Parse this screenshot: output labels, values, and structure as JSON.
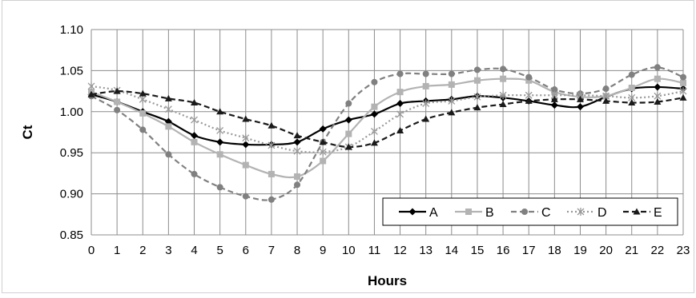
{
  "chart_data": {
    "type": "line",
    "title": "",
    "xlabel": "Hours",
    "ylabel": "Ct",
    "x": [
      0,
      1,
      2,
      3,
      4,
      5,
      6,
      7,
      8,
      9,
      10,
      11,
      12,
      13,
      14,
      15,
      16,
      17,
      18,
      19,
      20,
      21,
      22,
      23
    ],
    "ylim": [
      0.85,
      1.1
    ],
    "yticks": [
      "0.85",
      "0.90",
      "0.95",
      "1.00",
      "1.05",
      "1.10"
    ],
    "xticks": [
      "0",
      "1",
      "2",
      "3",
      "4",
      "5",
      "6",
      "7",
      "8",
      "9",
      "10",
      "11",
      "12",
      "13",
      "14",
      "15",
      "16",
      "17",
      "18",
      "19",
      "20",
      "21",
      "22",
      "23"
    ],
    "grid": "vertical and horizontal",
    "legend": "bottom-right",
    "series": [
      {
        "name": "A",
        "color": "#000000",
        "dash": "solid",
        "marker": "diamond",
        "values": [
          1.021,
          1.012,
          1.0,
          0.988,
          0.971,
          0.963,
          0.96,
          0.96,
          0.963,
          0.979,
          0.99,
          0.997,
          1.01,
          1.013,
          1.015,
          1.019,
          1.017,
          1.013,
          1.008,
          1.006,
          1.018,
          1.028,
          1.03,
          1.028
        ]
      },
      {
        "name": "B",
        "color": "#b3b3b3",
        "dash": "solid",
        "marker": "square",
        "values": [
          1.024,
          1.012,
          0.998,
          0.982,
          0.963,
          0.948,
          0.935,
          0.924,
          0.921,
          0.94,
          0.973,
          1.006,
          1.024,
          1.031,
          1.033,
          1.038,
          1.04,
          1.038,
          1.024,
          1.018,
          1.019,
          1.029,
          1.04,
          1.035
        ]
      },
      {
        "name": "C",
        "color": "#808080",
        "dash": "dashed",
        "marker": "circle",
        "values": [
          1.019,
          1.002,
          0.978,
          0.948,
          0.924,
          0.908,
          0.897,
          0.893,
          0.911,
          0.963,
          1.01,
          1.036,
          1.046,
          1.046,
          1.046,
          1.051,
          1.052,
          1.042,
          1.027,
          1.022,
          1.028,
          1.045,
          1.054,
          1.042
        ]
      },
      {
        "name": "D",
        "color": "#999999",
        "dash": "dotted",
        "marker": "asterisk",
        "values": [
          1.031,
          1.026,
          1.015,
          1.003,
          0.99,
          0.977,
          0.968,
          0.959,
          0.952,
          0.951,
          0.957,
          0.976,
          0.997,
          1.01,
          1.013,
          1.018,
          1.02,
          1.02,
          1.02,
          1.02,
          1.019,
          1.017,
          1.019,
          1.025
        ]
      },
      {
        "name": "E",
        "color": "#1a1a1a",
        "dash": "dashed",
        "marker": "triangle",
        "values": [
          1.021,
          1.025,
          1.022,
          1.016,
          1.011,
          1.0,
          0.991,
          0.983,
          0.971,
          0.963,
          0.957,
          0.962,
          0.977,
          0.991,
          0.999,
          1.005,
          1.009,
          1.013,
          1.015,
          1.015,
          1.013,
          1.011,
          1.012,
          1.017
        ]
      }
    ]
  }
}
